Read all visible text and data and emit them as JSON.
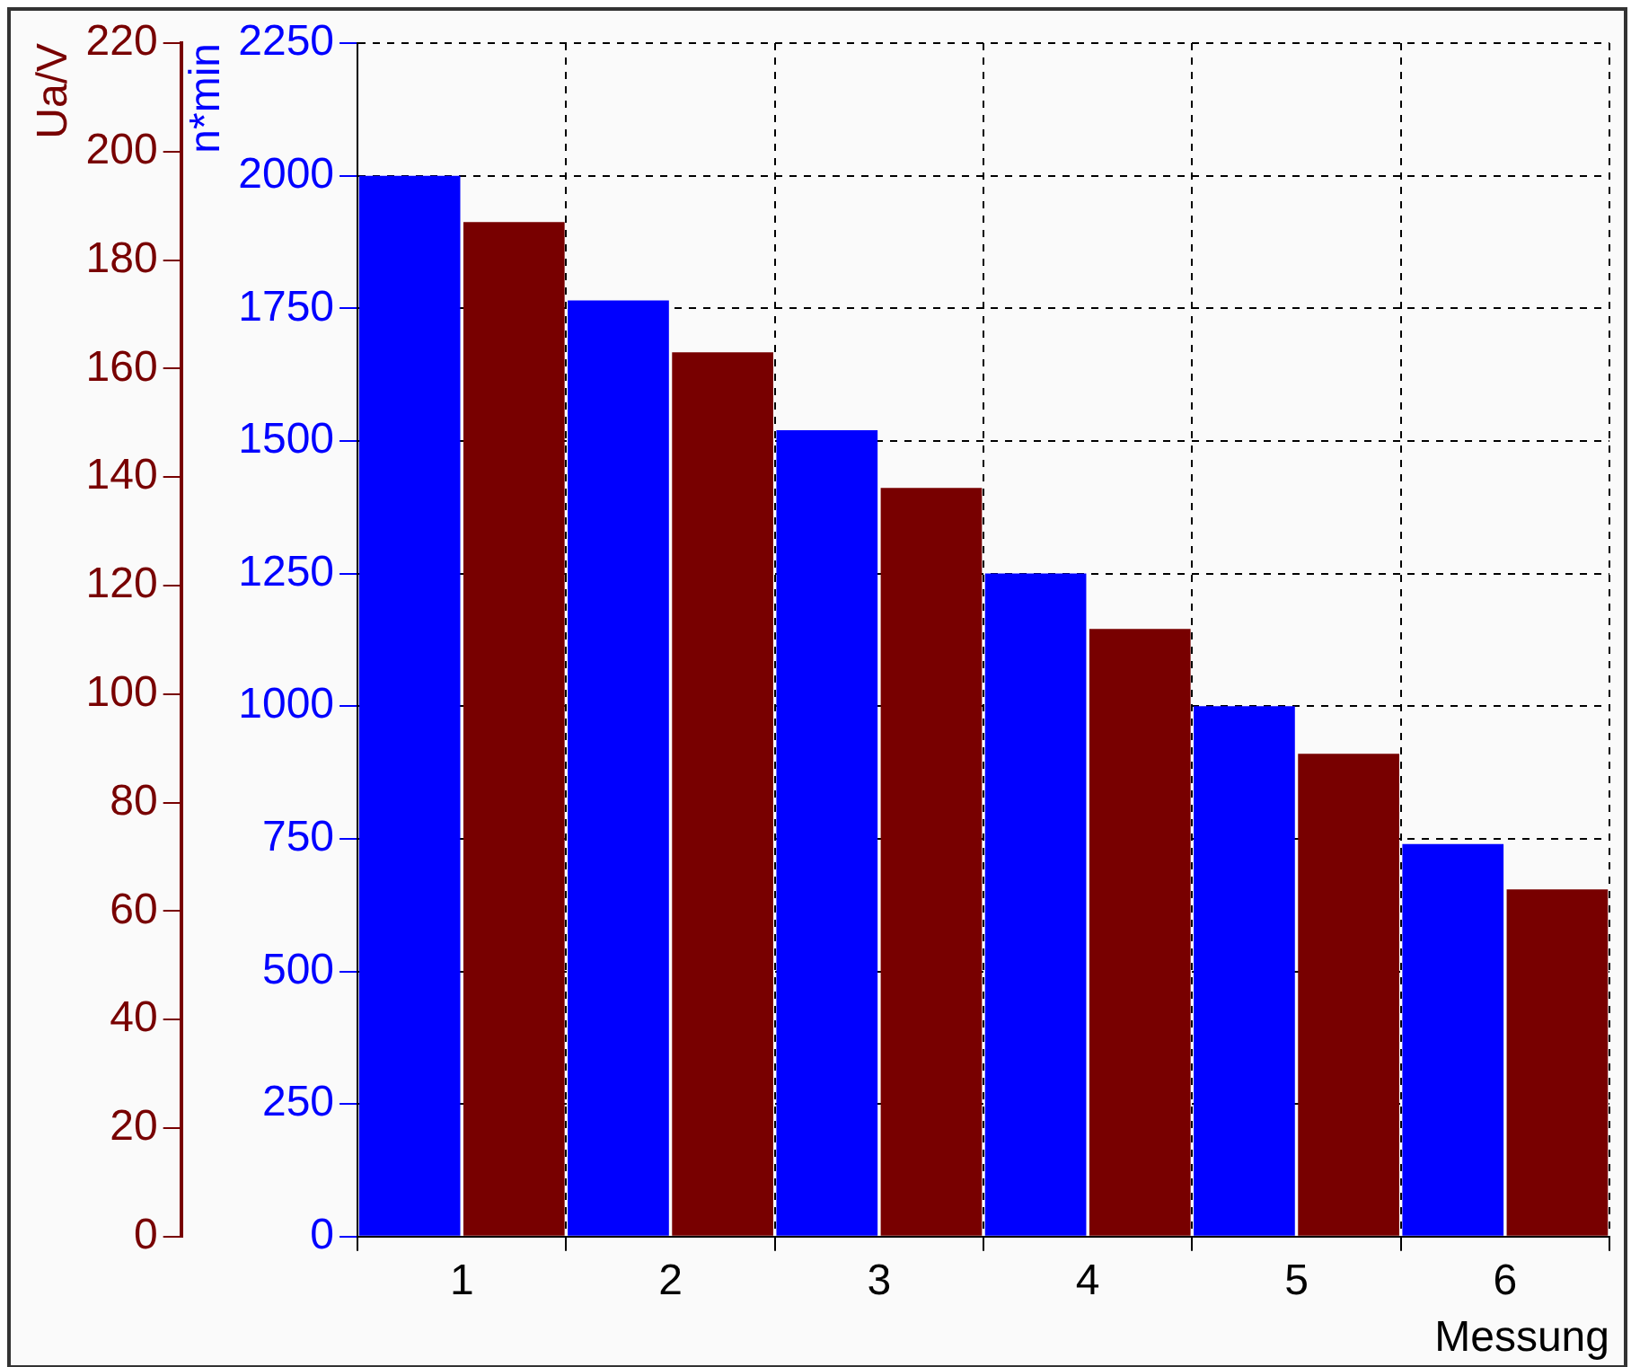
{
  "chart_data": {
    "type": "bar",
    "xlabel": "Messung",
    "ylabel": "n*min",
    "y2label": "Ua/V",
    "categories": [
      "1",
      "2",
      "3",
      "4",
      "5",
      "6"
    ],
    "series": [
      {
        "color": "#0000ff",
        "values": [
          2000,
          1765,
          1520,
          1250,
          1000,
          740
        ]
      },
      {
        "color": "#780000",
        "axis": "y2",
        "values": [
          187,
          163,
          138,
          112,
          89,
          64
        ]
      }
    ],
    "ylim": [
      0,
      2250
    ],
    "yticks": [
      0,
      250,
      500,
      750,
      1000,
      1250,
      1500,
      1750,
      2000,
      2250
    ],
    "y2lim": [
      0,
      220
    ],
    "y2ticks": [
      0,
      20,
      40,
      60,
      80,
      100,
      120,
      140,
      160,
      180,
      200,
      220
    ],
    "grid": true
  }
}
